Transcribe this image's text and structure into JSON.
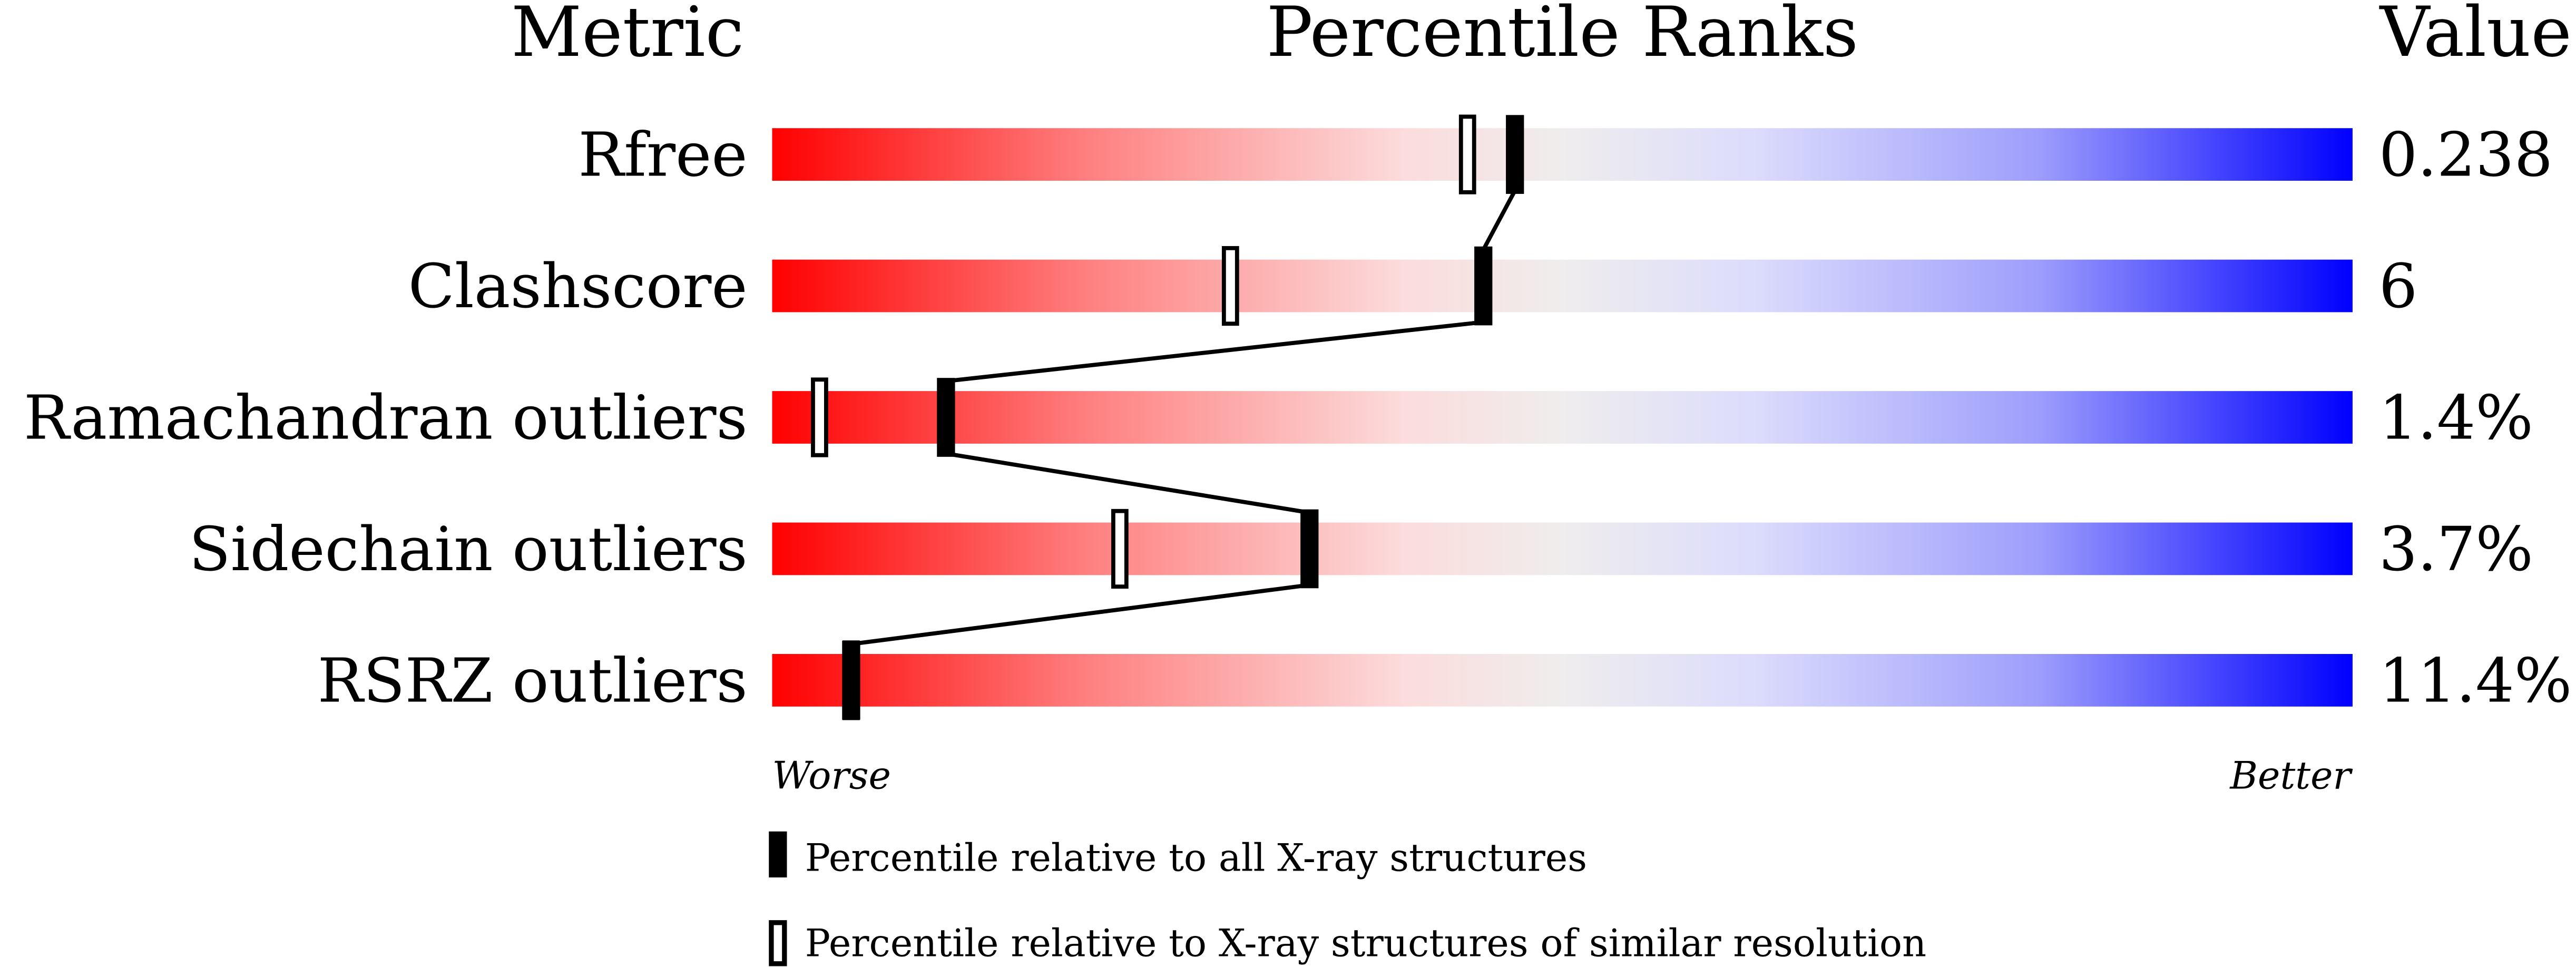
{
  "chart_data": {
    "type": "percentile-rank-slider",
    "headers": {
      "metric": "Metric",
      "ranks": "Percentile Ranks",
      "value": "Value"
    },
    "range": [
      0,
      100
    ],
    "axis_left": "Worse",
    "axis_right": "Better",
    "metrics": [
      {
        "name": "Rfree",
        "value": "0.238",
        "percentile_all": 47,
        "percentile_similar": 44
      },
      {
        "name": "Clashscore",
        "value": "6",
        "percentile_all": 45,
        "percentile_similar": 29
      },
      {
        "name": "Ramachandran outliers",
        "value": "1.4%",
        "percentile_all": 11,
        "percentile_similar": 3
      },
      {
        "name": "Sidechain outliers",
        "value": "3.7%",
        "percentile_all": 34,
        "percentile_similar": 22
      },
      {
        "name": "RSRZ outliers",
        "value": "11.4%",
        "percentile_all": 5,
        "percentile_similar": 5
      }
    ],
    "legend": {
      "filled": "Percentile relative to all X-ray structures",
      "hollow": "Percentile relative to X-ray structures of similar resolution"
    },
    "colors": {
      "worse": "#ff0000",
      "middle": "#efefef",
      "better": "#0000ff",
      "marker": "#000000"
    }
  }
}
